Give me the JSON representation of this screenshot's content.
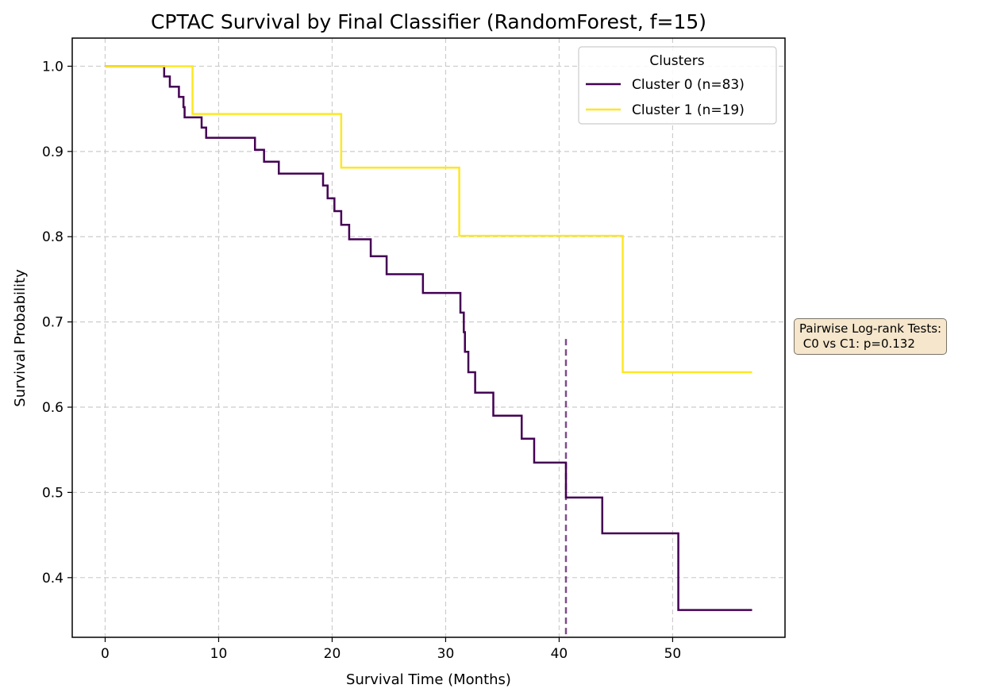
{
  "chart_data": {
    "type": "line",
    "title": "CPTAC Survival by Final Classifier (RandomForest, f=15)",
    "xlabel": "Survival Time (Months)",
    "ylabel": "Survival Probability",
    "xlim": [
      -2.9,
      59.9
    ],
    "ylim": [
      0.33,
      1.033
    ],
    "xticks": [
      0,
      10,
      20,
      30,
      40,
      50
    ],
    "yticks": [
      0.4,
      0.5,
      0.6,
      0.7,
      0.8,
      0.9,
      1.0
    ],
    "xtick_labels": [
      "0",
      "10",
      "20",
      "30",
      "40",
      "50"
    ],
    "ytick_labels": [
      "0.4",
      "0.5",
      "0.6",
      "0.7",
      "0.8",
      "0.9",
      "1.0"
    ],
    "grid": true,
    "legend": {
      "title": "Clusters",
      "placement": "top-right"
    },
    "series": [
      {
        "name": "Cluster 0 (n=83)",
        "color": "#440154",
        "step": "post",
        "x": [
          0,
          5.2,
          5.7,
          6.5,
          6.9,
          7.0,
          8.5,
          8.9,
          13.2,
          14.0,
          15.3,
          19.2,
          19.6,
          20.2,
          20.8,
          21.5,
          23.4,
          24.8,
          28.0,
          31.3,
          31.6,
          31.7,
          32.0,
          32.6,
          33.2,
          34.2,
          36.7,
          37.8,
          40.6,
          43.8,
          50.5,
          57.0
        ],
        "y": [
          1.0,
          0.988,
          0.976,
          0.964,
          0.952,
          0.94,
          0.928,
          0.916,
          0.902,
          0.888,
          0.874,
          0.86,
          0.845,
          0.83,
          0.814,
          0.797,
          0.777,
          0.756,
          0.734,
          0.711,
          0.688,
          0.665,
          0.641,
          0.617,
          0.617,
          0.59,
          0.563,
          0.535,
          0.494,
          0.452,
          0.362,
          0.362
        ]
      },
      {
        "name": "Cluster 1 (n=19)",
        "color": "#fde725",
        "step": "post",
        "x": [
          0,
          7.7,
          20.8,
          31.2,
          45.6,
          57.0
        ],
        "y": [
          1.0,
          0.944,
          0.881,
          0.801,
          0.641,
          0.641
        ]
      }
    ],
    "vline": {
      "x": 40.6,
      "y_range": [
        0.33,
        0.68
      ],
      "color": "#440154",
      "style": "dashed"
    },
    "annotation": "Pairwise Log-rank Tests:\n C0 vs C1: p=0.132"
  }
}
